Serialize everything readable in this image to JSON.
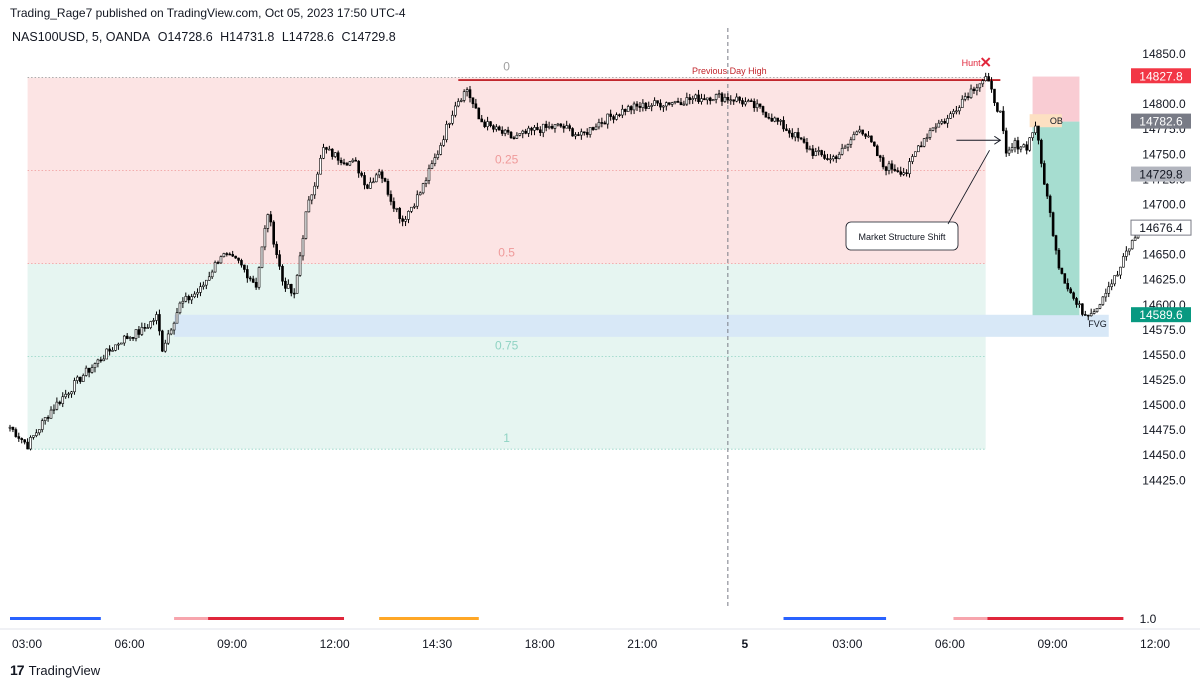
{
  "header": {
    "publisher": "Trading_Rage7 published on TradingView.com, Oct 05, 2023 17:50 UTC-4",
    "symbol": "NAS100USD, 5, OANDA",
    "open": "O14728.6",
    "high": "H14731.8",
    "low": "L14728.6",
    "close": "C14729.8"
  },
  "footer": {
    "brand": "TradingView"
  },
  "colors": {
    "premium_zone": "#fce4e4",
    "discount_zone": "#e6f5f1",
    "fvg": "#d8e8f7",
    "ob": "#fde0c2",
    "stop_zone": "#f9ccd3",
    "target_zone": "#a6ddd0",
    "previous_day_high": "#c2272d",
    "candles": "#000000",
    "fib_label_top": "#a0a0a0",
    "fib_label_red": "#ef9a9a",
    "fib_label_green": "#8fd3c3"
  },
  "chart_data": {
    "type": "candlestick",
    "symbol": "NAS100USD",
    "timeframe": "5",
    "broker": "OANDA",
    "ylim": [
      14410,
      14860
    ],
    "y_ticks": [
      14425.0,
      14450.0,
      14475.0,
      14500.0,
      14525.0,
      14550.0,
      14575.0,
      14600.0,
      14625.0,
      14650.0,
      14675.0,
      14700.0,
      14725.0,
      14750.0,
      14775.0,
      14800.0,
      14825.0,
      14850.0
    ],
    "x_tick_labels": [
      "03:00",
      "06:00",
      "09:00",
      "12:00",
      "14:30",
      "18:00",
      "21:00",
      "5",
      "03:00",
      "06:00",
      "09:00",
      "12:00"
    ],
    "x_tick_index": [
      0,
      35,
      70,
      105,
      140,
      175,
      210,
      245,
      280,
      315,
      350,
      385
    ],
    "right_scale_extra": "1.0",
    "session_separator_index": 245,
    "price_labels": [
      {
        "value": 14827.8,
        "text": "14827.8",
        "color": "#f23645",
        "style": "filled"
      },
      {
        "value": 14782.6,
        "text": "14782.6",
        "color": "#787b86",
        "style": "filled"
      },
      {
        "value": 14729.8,
        "text": "14729.8",
        "color": "#b2b5be",
        "style": "filled-dark-text"
      },
      {
        "value": 14676.4,
        "text": "14676.4",
        "color": "#787b86",
        "style": "outline"
      },
      {
        "value": 14589.6,
        "text": "14589.6",
        "color": "#089981",
        "style": "filled"
      }
    ],
    "fib_levels": [
      {
        "label": "0",
        "price": 14826.5,
        "color_key": "fib_label_top"
      },
      {
        "label": "0.25",
        "price": 14734.0,
        "color_key": "fib_label_red"
      },
      {
        "label": "0.5",
        "price": 14641.0,
        "color_key": "fib_label_red"
      },
      {
        "label": "0.75",
        "price": 14548.5,
        "color_key": "fib_label_green"
      },
      {
        "label": "1",
        "price": 14456.0,
        "color_key": "fib_label_green"
      }
    ],
    "zones": {
      "premium": {
        "from_index": 6,
        "to_index": 333,
        "top": 14826.5,
        "bottom": 14641.0
      },
      "discount": {
        "from_index": 6,
        "to_index": 333,
        "top": 14641.0,
        "bottom": 14456.0
      },
      "fvg": {
        "from_index": 56,
        "to_index": 375,
        "top": 14590.0,
        "bottom": 14568.0,
        "label": "FVG"
      },
      "ob": {
        "from_index": 348,
        "to_index": 359,
        "top": 14790.0,
        "bottom": 14777.0,
        "label": "OB"
      },
      "stop": {
        "from_index": 349,
        "to_index": 365,
        "top": 14827.5,
        "bottom": 14782.6
      },
      "target": {
        "from_index": 349,
        "to_index": 365,
        "top": 14782.6,
        "bottom": 14589.6
      }
    },
    "previous_day_high": {
      "price": 14824.0,
      "from_index": 153,
      "to_index": 338,
      "label": "Previous Day High"
    },
    "hunt": {
      "index": 333,
      "price": 14828.0,
      "label": "Hunt"
    },
    "market_structure_shift": {
      "label": "Market Structure Shift",
      "level": 14764.0,
      "from_index": 323,
      "to_index": 338
    },
    "candles_anchor_path": [
      [
        0,
        14478
      ],
      [
        6,
        14460
      ],
      [
        14,
        14495
      ],
      [
        25,
        14530
      ],
      [
        38,
        14565
      ],
      [
        45,
        14574
      ],
      [
        50,
        14588
      ],
      [
        52,
        14557
      ],
      [
        58,
        14600
      ],
      [
        65,
        14615
      ],
      [
        72,
        14650
      ],
      [
        78,
        14642
      ],
      [
        84,
        14620
      ],
      [
        88,
        14692
      ],
      [
        93,
        14624
      ],
      [
        97,
        14608
      ],
      [
        101,
        14690
      ],
      [
        107,
        14755
      ],
      [
        112,
        14747
      ],
      [
        118,
        14740
      ],
      [
        122,
        14718
      ],
      [
        126,
        14735
      ],
      [
        130,
        14706
      ],
      [
        134,
        14684
      ],
      [
        140,
        14712
      ],
      [
        146,
        14752
      ],
      [
        152,
        14801
      ],
      [
        156,
        14815
      ],
      [
        160,
        14785
      ],
      [
        165,
        14775
      ],
      [
        172,
        14766
      ],
      [
        180,
        14775
      ],
      [
        188,
        14778
      ],
      [
        195,
        14768
      ],
      [
        200,
        14780
      ],
      [
        210,
        14795
      ],
      [
        220,
        14800
      ],
      [
        230,
        14804
      ],
      [
        240,
        14808
      ],
      [
        248,
        14805
      ],
      [
        256,
        14795
      ],
      [
        262,
        14782
      ],
      [
        268,
        14768
      ],
      [
        274,
        14752
      ],
      [
        280,
        14745
      ],
      [
        285,
        14755
      ],
      [
        290,
        14778
      ],
      [
        294,
        14760
      ],
      [
        298,
        14738
      ],
      [
        302,
        14736
      ],
      [
        306,
        14732
      ],
      [
        310,
        14758
      ],
      [
        315,
        14778
      ],
      [
        320,
        14785
      ],
      [
        325,
        14805
      ],
      [
        330,
        14820
      ],
      [
        333,
        14826
      ],
      [
        338,
        14790
      ],
      [
        340,
        14748
      ],
      [
        343,
        14760
      ],
      [
        347,
        14758
      ],
      [
        350,
        14780
      ],
      [
        352,
        14740
      ],
      [
        355,
        14690
      ],
      [
        358,
        14640
      ],
      [
        361,
        14618
      ],
      [
        364,
        14600
      ],
      [
        367,
        14591
      ],
      [
        371,
        14598
      ],
      [
        374,
        14615
      ],
      [
        378,
        14630
      ],
      [
        381,
        14652
      ],
      [
        385,
        14672
      ],
      [
        389,
        14682
      ]
    ]
  },
  "session_bars": [
    {
      "from_index": 0,
      "to_index": 31,
      "segments": [
        {
          "color": "#2962ff",
          "frac": 1.0
        }
      ]
    },
    {
      "from_index": 56,
      "to_index": 114,
      "segments": [
        {
          "color": "#f7a5ad",
          "frac": 0.2
        },
        {
          "color": "#e0263b",
          "frac": 0.8
        }
      ]
    },
    {
      "from_index": 126,
      "to_index": 160,
      "segments": [
        {
          "color": "#ffa726",
          "frac": 1.0
        }
      ]
    },
    {
      "from_index": 264,
      "to_index": 299,
      "segments": [
        {
          "color": "#2962ff",
          "frac": 1.0
        }
      ]
    },
    {
      "from_index": 322,
      "to_index": 380,
      "segments": [
        {
          "color": "#f7a5ad",
          "frac": 0.2
        },
        {
          "color": "#e0263b",
          "frac": 0.8
        }
      ]
    }
  ]
}
